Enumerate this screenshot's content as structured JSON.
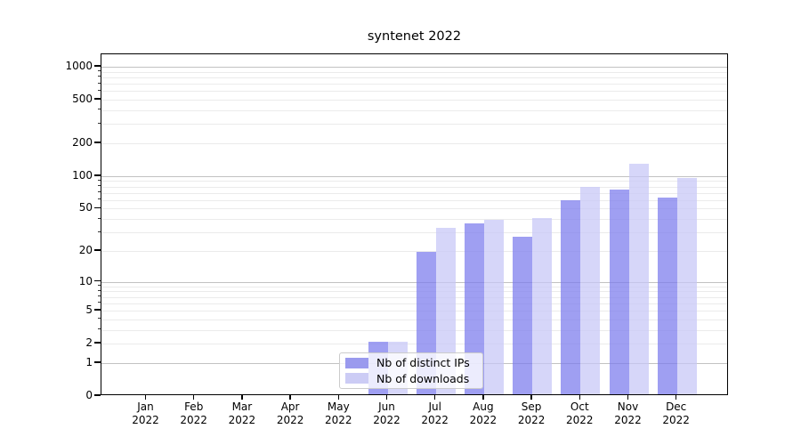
{
  "chart_data": {
    "type": "bar",
    "title": "syntenet 2022",
    "categories": [
      "Jan",
      "Feb",
      "Mar",
      "Apr",
      "May",
      "Jun",
      "Jul",
      "Aug",
      "Sep",
      "Oct",
      "Nov",
      "Dec"
    ],
    "x_year_line": "2022",
    "series": [
      {
        "name": "Nb of distinct IPs",
        "bar_color": "rgba(122,122,237,0.72)",
        "legend_color": "#9a9aee",
        "values": [
          0,
          0,
          0,
          0,
          0,
          2,
          19,
          35,
          26,
          58,
          73,
          61
        ]
      },
      {
        "name": "Nb of downloads",
        "bar_color": "rgba(198,198,246,0.72)",
        "legend_color": "#ccccf5",
        "values": [
          0,
          0,
          0,
          0,
          0,
          2,
          32,
          38,
          39,
          77,
          126,
          93
        ]
      }
    ],
    "yscale": "log10(value+1)",
    "ylim": [
      0,
      1300
    ],
    "yticks_labeled": [
      0,
      1,
      2,
      5,
      10,
      20,
      50,
      100,
      200,
      500,
      1000
    ],
    "y_major_gridlines": [
      1,
      10,
      100,
      1000
    ],
    "y_minor_gridlines": [
      2,
      3,
      4,
      5,
      6,
      7,
      8,
      9,
      20,
      30,
      40,
      50,
      60,
      70,
      80,
      90,
      200,
      300,
      400,
      500,
      600,
      700,
      800,
      900
    ],
    "grid_major_color": "#c2c2c2",
    "grid_minor_color": "#ebebeb",
    "legend_position": "lower center",
    "grid": true
  }
}
